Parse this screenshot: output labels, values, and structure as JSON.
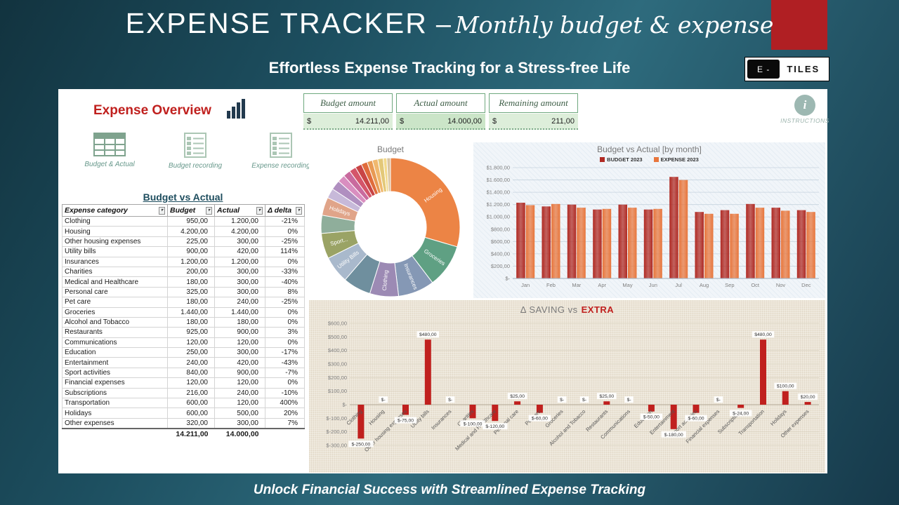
{
  "theme": {
    "accent_red": "#b0201e",
    "teal_bg": "#1d4f60",
    "green_border": "#6fa87e"
  },
  "header": {
    "title_main": "EXPENSE TRACKER",
    "title_dash": "–",
    "title_script": "Monthly budget & expense",
    "subtitle": "Effortless Expense Tracking for a Stress-free Life",
    "logo_left": "E -",
    "logo_right": "TILES"
  },
  "footer": {
    "tagline": "Unlock Financial Success with Streamlined Expense Tracking"
  },
  "overview": {
    "title": "Expense Overview",
    "nav_items": [
      {
        "label": "Budget & Actual"
      },
      {
        "label": "Budget recording"
      },
      {
        "label": "Expense recording"
      }
    ]
  },
  "summary": {
    "boxes": [
      {
        "label": "Budget amount",
        "currency": "$",
        "value": "14.211,00"
      },
      {
        "label": "Actual amount",
        "currency": "$",
        "value": "14.000,00"
      },
      {
        "label": "Remaining amount",
        "currency": "$",
        "value": "211,00"
      }
    ],
    "instructions_label": "INSTRUCTIONS"
  },
  "table": {
    "title": "Budget vs Actual",
    "headers": [
      "Expense category",
      "Budget",
      "Actual",
      "Δ delta"
    ],
    "rows": [
      [
        "Clothing",
        "950,00",
        "1.200,00",
        "-21%"
      ],
      [
        "Housing",
        "4.200,00",
        "4.200,00",
        "0%"
      ],
      [
        "Other housing expenses",
        "225,00",
        "300,00",
        "-25%"
      ],
      [
        "Utility bills",
        "900,00",
        "420,00",
        "114%"
      ],
      [
        "Insurances",
        "1.200,00",
        "1.200,00",
        "0%"
      ],
      [
        "Charities",
        "200,00",
        "300,00",
        "-33%"
      ],
      [
        "Medical and Healthcare",
        "180,00",
        "300,00",
        "-40%"
      ],
      [
        "Personal care",
        "325,00",
        "300,00",
        "8%"
      ],
      [
        "Pet care",
        "180,00",
        "240,00",
        "-25%"
      ],
      [
        "Groceries",
        "1.440,00",
        "1.440,00",
        "0%"
      ],
      [
        "Alcohol and Tobacco",
        "180,00",
        "180,00",
        "0%"
      ],
      [
        "Restaurants",
        "925,00",
        "900,00",
        "3%"
      ],
      [
        "Communications",
        "120,00",
        "120,00",
        "0%"
      ],
      [
        "Education",
        "250,00",
        "300,00",
        "-17%"
      ],
      [
        "Entertainment",
        "240,00",
        "420,00",
        "-43%"
      ],
      [
        "Sport activities",
        "840,00",
        "900,00",
        "-7%"
      ],
      [
        "Financial expenses",
        "120,00",
        "120,00",
        "0%"
      ],
      [
        "Subscriptions",
        "216,00",
        "240,00",
        "-10%"
      ],
      [
        "Transportation",
        "600,00",
        "120,00",
        "400%"
      ],
      [
        "Holidays",
        "600,00",
        "500,00",
        "20%"
      ],
      [
        "Other expenses",
        "320,00",
        "300,00",
        "7%"
      ]
    ],
    "total_budget": "14.211,00",
    "total_actual": "14.000,00"
  },
  "chart_data": [
    {
      "type": "pie",
      "title": "Budget",
      "donut": true,
      "slices": [
        {
          "name": "Housing",
          "value": 4200,
          "color": "#ec8445",
          "label": "Housing"
        },
        {
          "name": "Groceries",
          "value": 1440,
          "color": "#5fa083",
          "label": "Groceries"
        },
        {
          "name": "Insurances",
          "value": 1200,
          "color": "#8598b5",
          "label": "Insurances"
        },
        {
          "name": "Clothing",
          "value": 950,
          "color": "#9c8ab4",
          "label": "Clothing"
        },
        {
          "name": "Restaurants",
          "value": 925,
          "color": "#6f8f9e",
          "label": ""
        },
        {
          "name": "Utility bills",
          "value": 900,
          "color": "#a9b9cc",
          "label": "Utility Bills"
        },
        {
          "name": "Sport activities",
          "value": 840,
          "color": "#9aa365",
          "label": "Sport..."
        },
        {
          "name": "Transportation",
          "value": 600,
          "color": "#8fae9b",
          "label": ""
        },
        {
          "name": "Holidays",
          "value": 600,
          "color": "#e0a489",
          "label": "Holidays"
        },
        {
          "name": "Personal care",
          "value": 325,
          "color": "#c7b9d9",
          "label": ""
        },
        {
          "name": "Other expenses",
          "value": 320,
          "color": "#b08fc0",
          "label": ""
        },
        {
          "name": "Education",
          "value": 250,
          "color": "#d98ec0",
          "label": ""
        },
        {
          "name": "Entertainment",
          "value": 240,
          "color": "#c96a9e",
          "label": ""
        },
        {
          "name": "Other housing expenses",
          "value": 225,
          "color": "#d4556a",
          "label": ""
        },
        {
          "name": "Subscriptions",
          "value": 216,
          "color": "#c94545",
          "label": ""
        },
        {
          "name": "Charities",
          "value": 200,
          "color": "#e06c3c",
          "label": ""
        },
        {
          "name": "Medical and Healthcare",
          "value": 180,
          "color": "#e89a54",
          "label": ""
        },
        {
          "name": "Pet care",
          "value": 180,
          "color": "#f0b86e",
          "label": ""
        },
        {
          "name": "Alcohol and Tobacco",
          "value": 180,
          "color": "#e3c878",
          "label": ""
        },
        {
          "name": "Communications",
          "value": 120,
          "color": "#f2d98c",
          "label": ""
        },
        {
          "name": "Financial expenses",
          "value": 120,
          "color": "#d9c4a0",
          "label": ""
        }
      ]
    },
    {
      "type": "bar",
      "title": "Budget vs Actual [by month]",
      "categories": [
        "Jan",
        "Feb",
        "Mar",
        "Apr",
        "May",
        "Jun",
        "Jul",
        "Aug",
        "Sep",
        "Oct",
        "Nov",
        "Dec"
      ],
      "series": [
        {
          "name": "BUDGET 2023",
          "color": "#b02a23",
          "values": [
            1230,
            1170,
            1200,
            1120,
            1200,
            1120,
            1650,
            1080,
            1110,
            1210,
            1150,
            1110
          ]
        },
        {
          "name": "EXPENSE 2023",
          "color": "#e8763c",
          "values": [
            1190,
            1210,
            1150,
            1130,
            1150,
            1130,
            1600,
            1050,
            1050,
            1150,
            1100,
            1080
          ]
        }
      ],
      "ylim": [
        0,
        1800
      ],
      "ytick_step": 200,
      "ytick_labels": [
        "$-",
        "$200,00",
        "$400,00",
        "$600,00",
        "$800,00",
        "$1.000,00",
        "$1.200,00",
        "$1.400,00",
        "$1.600,00",
        "$1.800,00"
      ],
      "legend_position": "top",
      "grid": true
    },
    {
      "type": "bar",
      "title": "Δ SAVING vs",
      "title_accent": "EXTRA",
      "categories": [
        "Clothing",
        "Housing",
        "Other housing expenses",
        "Utility bills",
        "Insurances",
        "Charities",
        "Medical and Healthcare",
        "Personal care",
        "Pet care",
        "Groceries",
        "Alcohol and Tobacco",
        "Restaurants",
        "Communications",
        "Education",
        "Entertainment",
        "Sport activities",
        "Financial expenses",
        "Subscriptions",
        "Transportation",
        "Holidays",
        "Other expenses"
      ],
      "values": [
        -250,
        0,
        -75,
        480,
        0,
        -100,
        -120,
        25,
        -60,
        0,
        0,
        25,
        0,
        -50,
        -180,
        -60,
        0,
        -24,
        480,
        100,
        20
      ],
      "value_labels": [
        "$-250,00",
        "$-",
        "$-75,00",
        "$480,00",
        "$-",
        "$-100,00",
        "$-120,00",
        "$25,00",
        "$-60,00",
        "$-",
        "$-",
        "$25,00",
        "$-",
        "$-50,00",
        "$-180,00",
        "$-60,00",
        "$-",
        "$-24,00",
        "$480,00",
        "$100,00",
        "$20,00"
      ],
      "ylim": [
        -300,
        600
      ],
      "ytick_step": 100,
      "ytick_labels": [
        "$600,00",
        "$500,00",
        "$400,00",
        "$300,00",
        "$200,00",
        "$100,00",
        "$-",
        "$-100,00",
        "$-200,00",
        "$-300,00"
      ],
      "bar_color": "#c0201e",
      "grid": true
    }
  ]
}
